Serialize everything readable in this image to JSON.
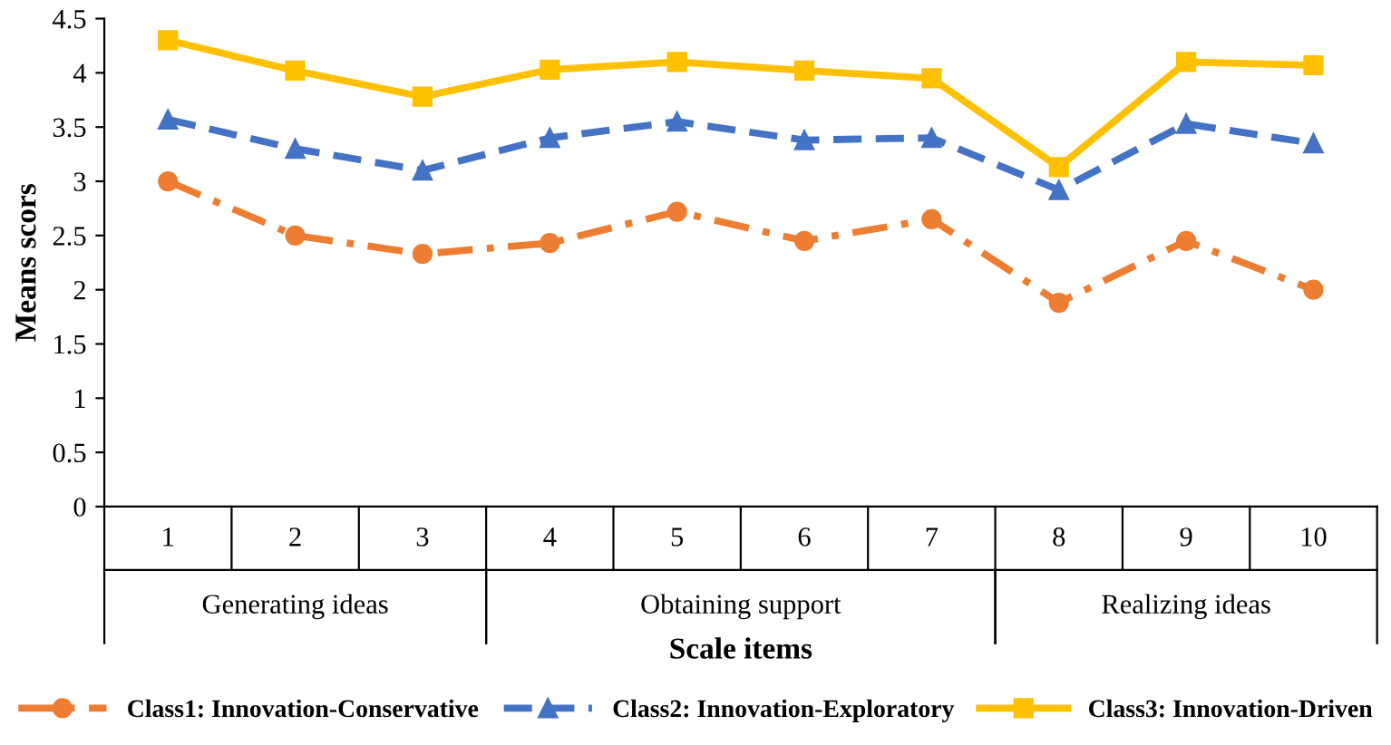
{
  "chart_data": {
    "type": "line",
    "categories": [
      "1",
      "2",
      "3",
      "4",
      "5",
      "6",
      "7",
      "8",
      "9",
      "10"
    ],
    "xlabel": "Scale items",
    "ylabel": "Means scors",
    "ylim": [
      0,
      4.5
    ],
    "yticks": [
      0,
      0.5,
      1,
      1.5,
      2,
      2.5,
      3,
      3.5,
      4,
      4.5
    ],
    "grid": false,
    "legend": "bottom",
    "annotations": [
      "Generating ideas",
      "Obtaining support",
      "Realizing ideas"
    ],
    "series": [
      {
        "name": "Class1: Innovation-Conservative",
        "color": "#ed7d31",
        "marker": "circle",
        "line_style": "dashdot",
        "values": [
          3.0,
          2.5,
          2.33,
          2.43,
          2.72,
          2.45,
          2.65,
          1.88,
          2.45,
          2.0
        ]
      },
      {
        "name": "Class2: Innovation-Exploratory",
        "color": "#4472c4",
        "marker": "triangle",
        "line_style": "dashed",
        "values": [
          3.57,
          3.3,
          3.1,
          3.4,
          3.55,
          3.38,
          3.4,
          2.92,
          3.53,
          3.35
        ]
      },
      {
        "name": "Class3: Innovation-Driven",
        "color": "#ffc000",
        "marker": "square",
        "line_style": "solid",
        "values": [
          4.3,
          4.02,
          3.78,
          4.03,
          4.1,
          4.02,
          3.95,
          3.13,
          4.1,
          4.07
        ]
      }
    ]
  }
}
